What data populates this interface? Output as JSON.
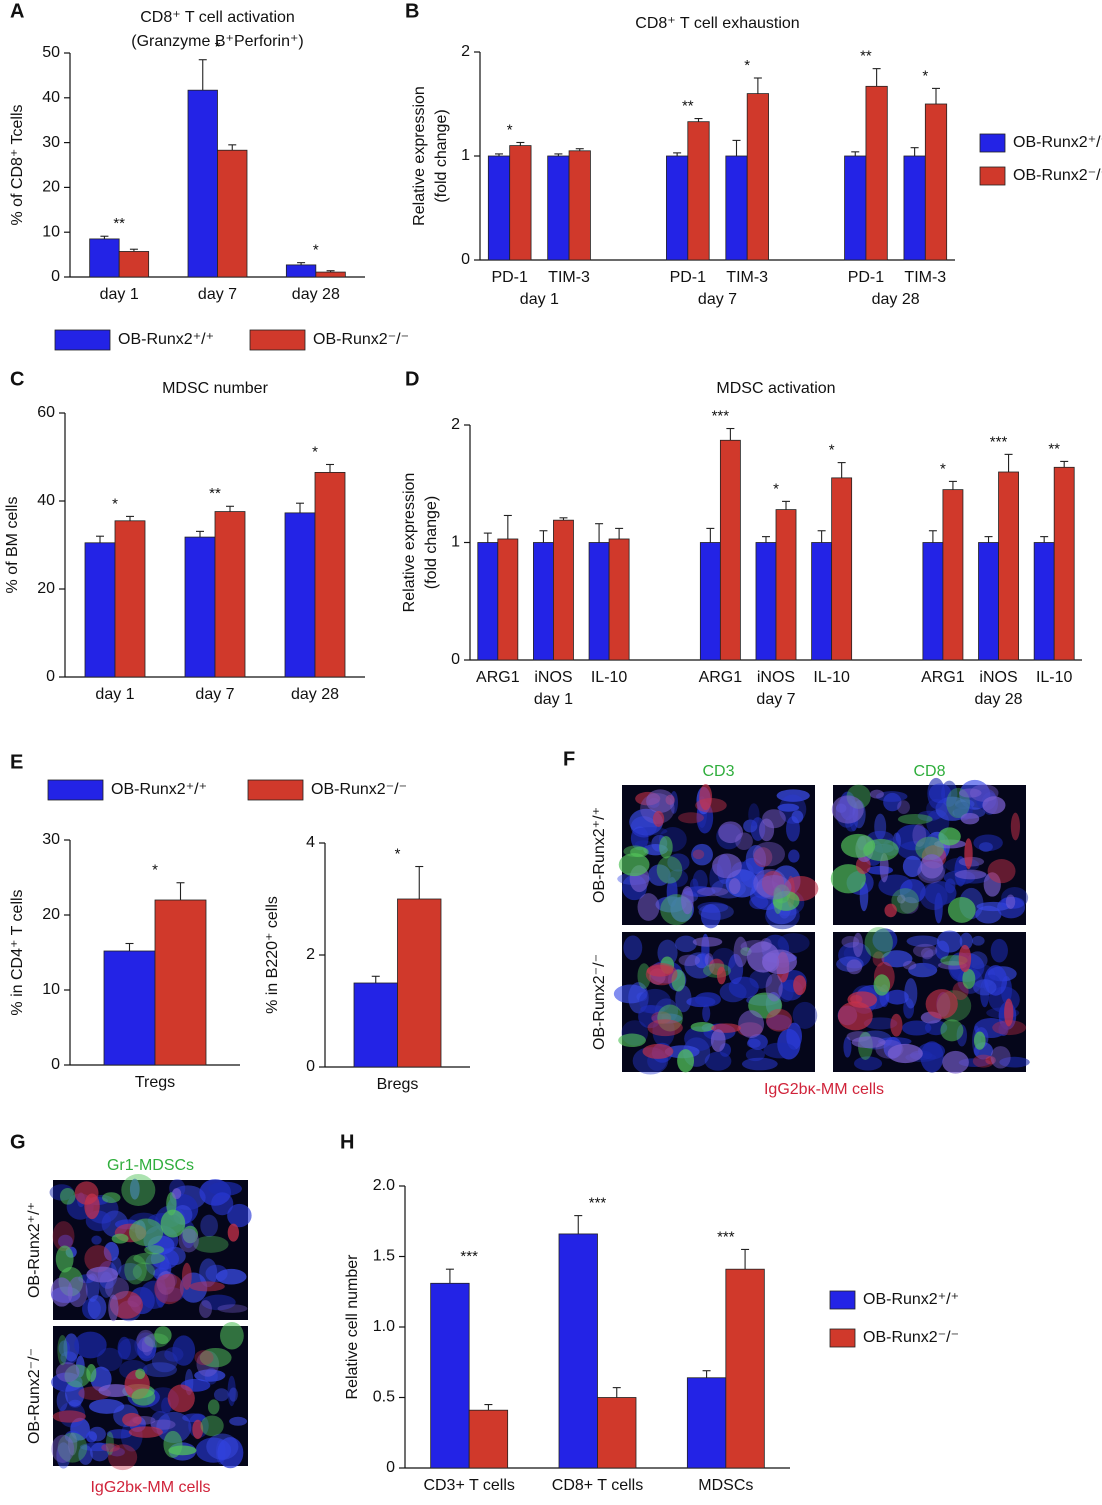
{
  "chart_data": [
    {
      "type": "bar",
      "label": "A",
      "title": "CD8⁺ T cell activation",
      "subtitle": "(Granzyme B⁺Perforin⁺)",
      "ylabel": "% of CD8⁺ Tcells",
      "categories": [
        "day 1",
        "day 7",
        "day 28"
      ],
      "series": [
        {
          "name": "OB-Runx2⁺/⁺",
          "color": "#2323e6",
          "values": [
            8.5,
            41.7,
            2.7
          ],
          "errors": [
            0.6,
            6.8,
            0.5
          ]
        },
        {
          "name": "OB-Runx2⁻/⁻",
          "color": "#d0392b",
          "values": [
            5.7,
            28.3,
            1.1
          ],
          "errors": [
            0.5,
            1.2,
            0.3
          ]
        }
      ],
      "significance": [
        "**",
        "*",
        "*"
      ],
      "ylim": [
        0,
        50
      ],
      "yticks": [
        0,
        10,
        20,
        30,
        40,
        50
      ],
      "legend": "bottom"
    },
    {
      "type": "bar",
      "label": "B",
      "title": "CD8⁺ T cell exhaustion",
      "ylabel": [
        "Relative expression",
        "(fold change)"
      ],
      "groups": [
        "day 1",
        "day 7",
        "day 28"
      ],
      "categories": [
        "PD-1",
        "TIM-3",
        "PD-1",
        "TIM-3",
        "PD-1",
        "TIM-3"
      ],
      "series": [
        {
          "name": "OB-Runx2⁺/⁺",
          "color": "#2323e6",
          "values": [
            1,
            1,
            1,
            1,
            1,
            1
          ],
          "errors": [
            0.02,
            0.02,
            0.03,
            0.15,
            0.04,
            0.08
          ]
        },
        {
          "name": "OB-Runx2⁻/⁻",
          "color": "#d0392b",
          "values": [
            1.1,
            1.05,
            1.33,
            1.6,
            1.67,
            1.5
          ],
          "errors": [
            0.03,
            0.02,
            0.03,
            0.15,
            0.17,
            0.15
          ]
        }
      ],
      "significance": [
        "*",
        null,
        "**",
        "*",
        "**",
        "*"
      ],
      "ylim": [
        0,
        2
      ],
      "yticks": [
        0,
        1,
        2
      ],
      "legend": "right"
    },
    {
      "type": "bar",
      "label": "C",
      "title": "MDSC number",
      "ylabel": "% of BM cells",
      "categories": [
        "day 1",
        "day 7",
        "day 28"
      ],
      "series": [
        {
          "color": "#2323e6",
          "values": [
            30.5,
            31.8,
            37.3
          ],
          "errors": [
            1.5,
            1.3,
            2.2
          ]
        },
        {
          "color": "#d0392b",
          "values": [
            35.5,
            37.6,
            46.5
          ],
          "errors": [
            1.0,
            1.2,
            1.8
          ]
        }
      ],
      "significance": [
        "*",
        "**",
        "*"
      ],
      "ylim": [
        0,
        60
      ],
      "yticks": [
        0,
        20,
        40,
        60
      ]
    },
    {
      "type": "bar",
      "label": "D",
      "title": "MDSC activation",
      "ylabel": [
        "Relative expression",
        "(fold change)"
      ],
      "groups": [
        "day 1",
        "day 7",
        "day 28"
      ],
      "categories": [
        "ARG1",
        "iNOS",
        "IL-10",
        "ARG1",
        "iNOS",
        "IL-10",
        "ARG1",
        "iNOS",
        "IL-10"
      ],
      "series": [
        {
          "color": "#2323e6",
          "values": [
            1,
            1,
            1,
            1,
            1,
            1,
            1,
            1,
            1
          ],
          "errors": [
            0.08,
            0.1,
            0.16,
            0.12,
            0.05,
            0.1,
            0.1,
            0.05,
            0.05
          ]
        },
        {
          "color": "#d0392b",
          "values": [
            1.03,
            1.19,
            1.03,
            1.87,
            1.28,
            1.55,
            1.45,
            1.6,
            1.64
          ],
          "errors": [
            0.2,
            0.02,
            0.09,
            0.1,
            0.07,
            0.13,
            0.07,
            0.15,
            0.05
          ]
        }
      ],
      "significance": [
        null,
        null,
        null,
        "***",
        "*",
        "*",
        "*",
        "***",
        "**"
      ],
      "ylim": [
        0,
        2
      ],
      "yticks": [
        0,
        1,
        2
      ]
    },
    {
      "type": "bar",
      "label": "E",
      "ylabel": "% in CD4⁺ T cells",
      "categories": [
        "Tregs"
      ],
      "series": [
        {
          "name": "OB-Runx2⁺/⁺",
          "color": "#2323e6",
          "values": [
            15.2
          ],
          "errors": [
            1.0
          ]
        },
        {
          "name": "OB-Runx2⁻/⁻",
          "color": "#d0392b",
          "values": [
            22
          ],
          "errors": [
            2.3
          ]
        }
      ],
      "significance": [
        "*"
      ],
      "ylim": [
        0,
        30
      ],
      "yticks": [
        0,
        10,
        20,
        30
      ],
      "legend": "top"
    },
    {
      "type": "bar",
      "ylabel": "% in B220⁺ cells",
      "categories": [
        "Bregs"
      ],
      "series": [
        {
          "color": "#2323e6",
          "values": [
            1.5
          ],
          "errors": [
            0.12
          ]
        },
        {
          "color": "#d0392b",
          "values": [
            3
          ],
          "errors": [
            0.58
          ]
        }
      ],
      "significance": [
        "*"
      ],
      "ylim": [
        0,
        4
      ],
      "yticks": [
        0,
        2,
        4
      ]
    },
    {
      "type": "bar",
      "label": "H",
      "ylabel": "Relative cell number",
      "categories": [
        "CD3+ T cells",
        "CD8+ T cells",
        "MDSCs"
      ],
      "series": [
        {
          "name": "OB-Runx2⁺/⁺",
          "color": "#2323e6",
          "values": [
            1.31,
            1.66,
            0.64
          ],
          "errors": [
            0.1,
            0.13,
            0.05
          ]
        },
        {
          "name": "OB-Runx2⁻/⁻",
          "color": "#d0392b",
          "values": [
            0.41,
            0.5,
            1.41
          ],
          "errors": [
            0.04,
            0.07,
            0.14
          ]
        }
      ],
      "significance": [
        "***",
        "***",
        "***"
      ],
      "ylim": [
        0,
        2
      ],
      "yticks": [
        0,
        {
          "value": 0.5,
          "label": "0.5"
        },
        {
          "value": 1,
          "label": "1.0"
        },
        {
          "value": 1.5,
          "label": "1.5"
        },
        {
          "value": 2,
          "label": "2.0"
        }
      ],
      "legend": "right"
    }
  ],
  "images": [
    {
      "label": "F",
      "columns": [
        "CD3",
        "CD8"
      ],
      "rows": [
        "OB-Runx2⁺/⁺",
        "OB-Runx2⁻/⁻"
      ],
      "caption": "IgG2bκ-MM cells"
    },
    {
      "label": "G",
      "columns": [
        "Gr1-MDSCs"
      ],
      "rows": [
        "OB-Runx2⁺/⁺",
        "OB-Runx2⁻/⁻"
      ],
      "caption": "IgG2bκ-MM cells"
    }
  ]
}
